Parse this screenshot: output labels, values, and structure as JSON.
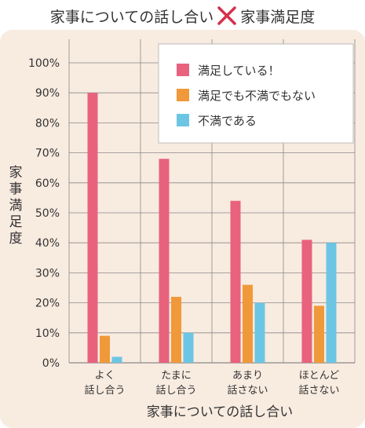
{
  "header": {
    "left_title": "家事についての話し合い",
    "right_title": "家事満足度"
  },
  "colors": {
    "pink": "#e8627e",
    "orange": "#f0993a",
    "blue": "#6cc6e3",
    "panel": "#f8ebe0"
  },
  "chart_data": {
    "type": "bar",
    "title": "",
    "xlabel": "家事についての話し合い",
    "ylabel": "家事満足度",
    "ylim": [
      0,
      100
    ],
    "yticks": [
      "0%",
      "10%",
      "20%",
      "30%",
      "40%",
      "50%",
      "60%",
      "70%",
      "80%",
      "90%",
      "100%"
    ],
    "categories": [
      [
        "よく",
        "話し合う"
      ],
      [
        "たまに",
        "話し合う"
      ],
      [
        "あまり",
        "話さない"
      ],
      [
        "ほとんど",
        "話さない"
      ]
    ],
    "series": [
      {
        "name": "満足している！",
        "color": "#e8627e",
        "values": [
          90,
          68,
          54,
          41
        ]
      },
      {
        "name": "満足でも不満でもない",
        "color": "#f0993a",
        "values": [
          9,
          22,
          26,
          19
        ]
      },
      {
        "name": "不満である",
        "color": "#6cc6e3",
        "values": [
          2,
          10,
          20,
          40
        ]
      }
    ],
    "grid": true,
    "legend": "top-right"
  }
}
